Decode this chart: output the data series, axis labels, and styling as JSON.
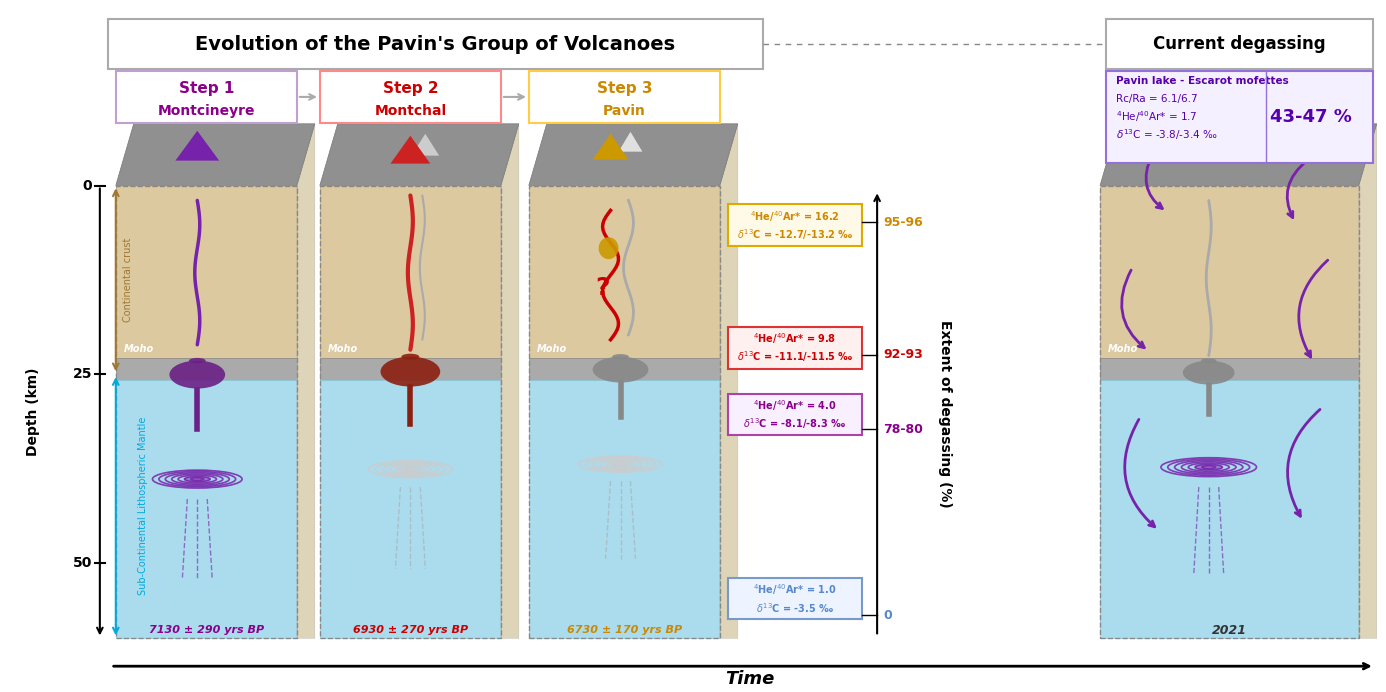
{
  "title_main": "Evolution of the Pavin's Group of Volcanoes",
  "title_right": "Current degassing",
  "steps": [
    {
      "label": "Step 1",
      "sublabel": "Montcineyre",
      "text_color": "#8B008B",
      "border": "#C0A0D0",
      "age": "7130 ± 290 yrs BP",
      "age_color": "#8B008B"
    },
    {
      "label": "Step 2",
      "sublabel": "Montchal",
      "text_color": "#CC0000",
      "border": "#FF8888",
      "age": "6930 ± 270 yrs BP",
      "age_color": "#CC0000"
    },
    {
      "label": "Step 3",
      "sublabel": "Pavin",
      "text_color": "#CC8800",
      "border": "#FFCC44",
      "age": "6730 ± 170 yrs BP",
      "age_color": "#CC8800"
    }
  ],
  "current_label": "2021",
  "depth_label": "Depth (km)",
  "time_label": "Time",
  "crust_label": "Continental crust",
  "mantle_label": "Sub-Continental Lithospheric Mantle",
  "extent_label": "Extent of degassing (%)",
  "crust_color": "#DCC9A0",
  "mantle_color": "#AADCEE",
  "moho_color": "#AAAAAA",
  "photo_color": "#A0A0A0",
  "deg_boxes": [
    {
      "line1": "$^4$He/$^{40}$Ar* = 16.2",
      "line2": "$\\delta^{13}$C = -12.7/-13.2 ‰",
      "pct": "95-96",
      "tc": "#CC8800",
      "bc": "#DDAA00",
      "bg": "#FFFAE8"
    },
    {
      "line1": "$^4$He/$^{40}$Ar* = 9.8",
      "line2": "$\\delta^{13}$C = -11.1/-11.5 ‰",
      "pct": "92-93",
      "tc": "#CC0000",
      "bc": "#DD3333",
      "bg": "#FFF0F0"
    },
    {
      "line1": "$^4$He/$^{40}$Ar* = 4.0",
      "line2": "$\\delta^{13}$C = -8.1/-8.3 ‰",
      "pct": "78-80",
      "tc": "#8B008B",
      "bc": "#AA44AA",
      "bg": "#F8F0FF"
    },
    {
      "line1": "$^4$He/$^{40}$Ar* = 1.0",
      "line2": "$\\delta^{13}$C = -3.5 ‰",
      "pct": "0",
      "tc": "#5588CC",
      "bc": "#7799CC",
      "bg": "#EEF4FF"
    }
  ],
  "pavin_info": [
    "Pavin lake - Escarot mofettes",
    "Rc/Ra = 6.1/6.7",
    "$^4$He/$^{40}$Ar* = 1.7",
    "$\\delta^{13}$C = -3.8/-3.4 ‰"
  ],
  "pavin_pct": "43-47 %"
}
